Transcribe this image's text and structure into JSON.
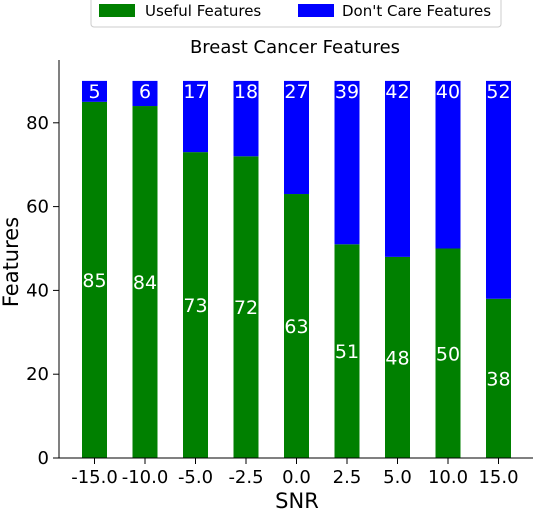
{
  "chart_data": {
    "type": "bar",
    "stacked": true,
    "title": "Breast Cancer Features",
    "xlabel": "SNR",
    "ylabel": "Features",
    "categories": [
      "-15.0",
      "-10.0",
      "-5.0",
      "-2.5",
      "0.0",
      "2.5",
      "5.0",
      "10.0",
      "15.0"
    ],
    "series": [
      {
        "name": "Useful Features",
        "color": "#008000",
        "values": [
          85,
          84,
          73,
          72,
          63,
          51,
          48,
          50,
          38
        ]
      },
      {
        "name": "Don't Care Features",
        "color": "#0000ff",
        "values": [
          5,
          6,
          17,
          18,
          27,
          39,
          42,
          40,
          52
        ]
      }
    ],
    "ylim": [
      0,
      90
    ],
    "yticks": [
      0,
      20,
      40,
      60,
      80
    ],
    "grid": false,
    "legend_position": "top"
  }
}
